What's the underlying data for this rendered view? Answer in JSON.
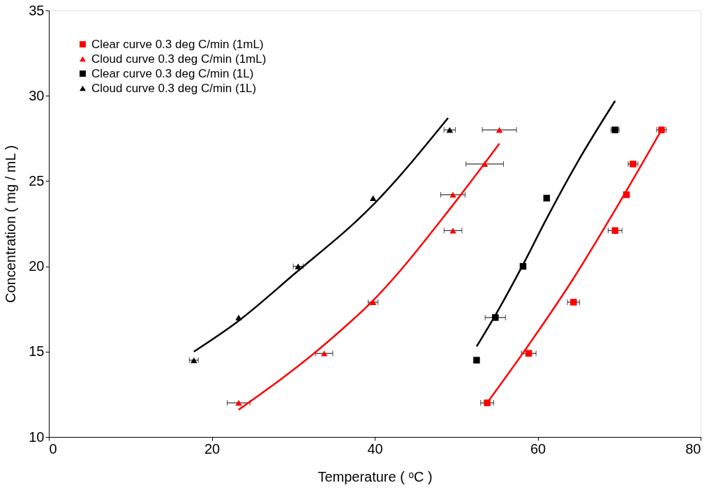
{
  "chart_data": {
    "type": "scatter",
    "xlabel": "Temperature ( ᵒC )",
    "ylabel": "Concentration ( mg / mL )",
    "xlim": [
      0,
      80
    ],
    "xticks": [
      0,
      20,
      40,
      60,
      80
    ],
    "ylim": [
      10,
      35
    ],
    "yticks": [
      10,
      15,
      20,
      25,
      30,
      35
    ],
    "grid": false,
    "legend": "top left",
    "series": [
      {
        "name": "Clear curve 0.3 deg C/min (1mL)",
        "color": "#ff0000",
        "marker": "square",
        "x": [
          53.8,
          58.9,
          64.4,
          69.5,
          70.9,
          71.7,
          75.2
        ],
        "values": [
          12,
          14.9,
          17.9,
          22.1,
          24.2,
          26,
          28
        ],
        "xerrors": [
          0.8,
          0.9,
          0.75,
          0.85,
          null,
          0.6,
          0.6
        ]
      },
      {
        "name": "Cloud curve 0.3 deg C/min (1mL)",
        "color": "#ff0000",
        "marker": "triangle",
        "x": [
          23.3,
          33.8,
          39.8,
          49.6,
          49.6,
          53.5,
          55.3
        ],
        "values": [
          12,
          14.9,
          17.9,
          22.1,
          24.2,
          26,
          28
        ],
        "xerrors": [
          1.4,
          1.05,
          0.6,
          1.1,
          1.5,
          2.3,
          2.1
        ]
      },
      {
        "name": "Clear curve 0.3 deg C/min (1L)",
        "color": "#000000",
        "marker": "square",
        "x": [
          52.5,
          54.8,
          58.2,
          61.1,
          69.5
        ],
        "values": [
          14.5,
          17,
          20,
          24,
          28
        ],
        "xerrors": [
          null,
          1.25,
          null,
          null,
          0.5
        ]
      },
      {
        "name": "Cloud curve 0.3 deg C/min (1L)",
        "color": "#000000",
        "marker": "triangle",
        "x": [
          17.8,
          23.3,
          30.6,
          39.8,
          49.2
        ],
        "values": [
          14.5,
          17,
          20,
          24,
          28
        ],
        "xerrors": [
          0.55,
          null,
          0.6,
          null,
          0.7
        ]
      },
      {
        "type": "line",
        "color": "#000000",
        "line_style": "solid",
        "x": [
          17.8,
          23,
          30,
          40,
          49
        ],
        "values": [
          15.0,
          16.7,
          19.5,
          23.7,
          28.7
        ]
      },
      {
        "type": "line",
        "color": "#ff0000",
        "line_style": "solid",
        "x": [
          23.3,
          33.8,
          40,
          49.6,
          55.3
        ],
        "values": [
          11.6,
          15.4,
          18.1,
          23.6,
          27.2
        ]
      },
      {
        "type": "line",
        "color": "#000000",
        "line_style": "solid",
        "x": [
          52.5,
          55,
          58.2,
          61.1,
          65,
          69.5
        ],
        "values": [
          15.3,
          17.3,
          20.1,
          22.8,
          26.2,
          29.7
        ]
      },
      {
        "type": "line",
        "color": "#ff0000",
        "line_style": "solid",
        "x": [
          53.8,
          58.9,
          64.4,
          69.5,
          75.2
        ],
        "values": [
          12,
          15.4,
          19.3,
          23.3,
          28
        ]
      }
    ]
  }
}
